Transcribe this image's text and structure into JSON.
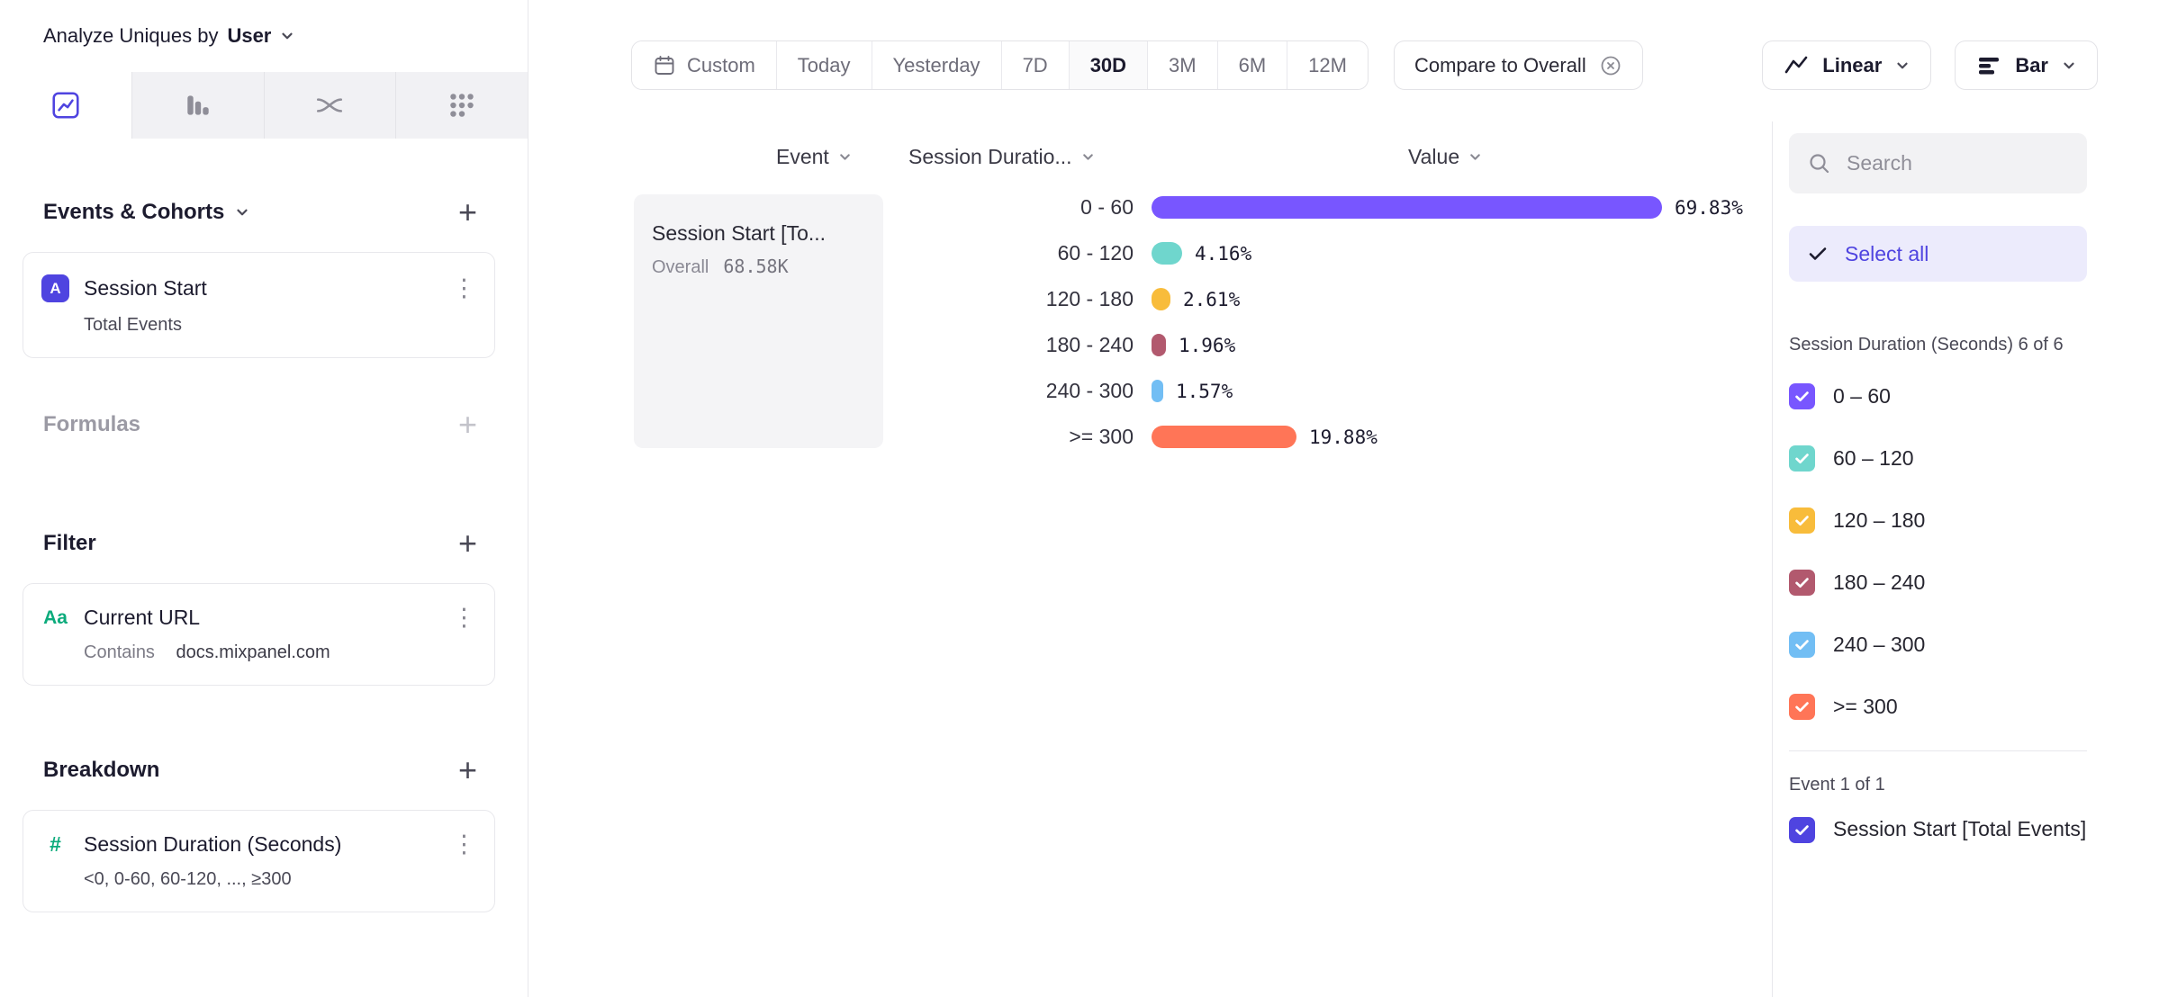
{
  "icons": {
    "plus": "+",
    "kebab": "⋮"
  },
  "accent_color": "#4F44E0",
  "sidebar": {
    "analyze_prefix": "Analyze Uniques by",
    "analyze_value": "User",
    "tabs": [
      "insights",
      "funnels",
      "flows",
      "retention"
    ],
    "events_section": {
      "title": "Events & Cohorts"
    },
    "event_card": {
      "badge": "A",
      "title": "Session Start",
      "subtitle": "Total Events"
    },
    "formulas_section": {
      "title": "Formulas"
    },
    "filter_section": {
      "title": "Filter"
    },
    "filter_card": {
      "icon": "Aa",
      "title": "Current URL",
      "operator": "Contains",
      "value": "docs.mixpanel.com"
    },
    "breakdown_section": {
      "title": "Breakdown"
    },
    "breakdown_card": {
      "icon": "#",
      "title": "Session Duration (Seconds)",
      "subtitle": "<0, 0-60, 60-120, ..., ≥300"
    }
  },
  "toolbar": {
    "ranges": [
      "Custom",
      "Today",
      "Yesterday",
      "7D",
      "30D",
      "3M",
      "6M",
      "12M"
    ],
    "selected_range": "30D",
    "compare_label": "Compare to Overall",
    "chart_scale_label": "Linear",
    "chart_type_label": "Bar"
  },
  "columns": {
    "event": "Event",
    "breakdown": "Session Duratio...",
    "value": "Value"
  },
  "group_cell": {
    "title": "Session Start [To...",
    "overall_label": "Overall",
    "overall_value": "68.58K"
  },
  "chart_data": {
    "type": "bar",
    "orientation": "horizontal",
    "series_name": "Session Start [Total Events]",
    "overall_total": "68.58K",
    "categories": [
      "0 - 60",
      "60 - 120",
      "120 - 180",
      "180 - 240",
      "240 - 300",
      ">= 300"
    ],
    "values": [
      69.83,
      4.16,
      2.61,
      1.96,
      1.57,
      19.88
    ],
    "value_labels": [
      "69.83%",
      "4.16%",
      "2.61%",
      "1.96%",
      "1.57%",
      "19.88%"
    ],
    "colors": [
      "#7856FF",
      "#6FD6CD",
      "#F8BC3B",
      "#B2596E",
      "#72BEF4",
      "#FF7557"
    ],
    "xlabel": "Value",
    "ylabel": "Session Duration (Seconds)",
    "xlim": [
      0,
      75
    ],
    "grid": false,
    "legend": "right-panel-checkboxes"
  },
  "right_panel": {
    "search_placeholder": "Search",
    "select_all_label": "Select all",
    "group_header": "Session Duration (Seconds) 6 of 6",
    "items": [
      {
        "label": "0 – 60",
        "color": "#7856FF",
        "checked": true
      },
      {
        "label": "60 – 120",
        "color": "#6FD6CD",
        "checked": true
      },
      {
        "label": "120 – 180",
        "color": "#F8BC3B",
        "checked": true
      },
      {
        "label": "180 – 240",
        "color": "#B2596E",
        "checked": true
      },
      {
        "label": "240 – 300",
        "color": "#72BEF4",
        "checked": true
      },
      {
        "label": ">= 300",
        "color": "#FF7557",
        "checked": true
      }
    ],
    "event_header": "Event 1 of 1",
    "event_item": {
      "label": "Session Start [Total Events]",
      "color": "#4F44E0",
      "checked": true
    }
  }
}
